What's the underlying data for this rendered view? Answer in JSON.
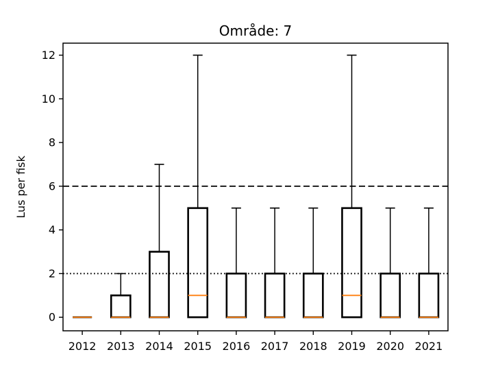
{
  "figure": {
    "background": "#ffffff"
  },
  "chart_data": {
    "type": "boxplot",
    "title": "Område: 7",
    "xlabel": "",
    "ylabel": "Lus per fisk",
    "categories": [
      "2012",
      "2013",
      "2014",
      "2015",
      "2016",
      "2017",
      "2018",
      "2019",
      "2020",
      "2021"
    ],
    "series": [
      {
        "category": "2012",
        "whisker_low": 0,
        "q1": 0,
        "median": 0,
        "q3": 0,
        "whisker_high": 0
      },
      {
        "category": "2013",
        "whisker_low": 0,
        "q1": 0,
        "median": 0,
        "q3": 1,
        "whisker_high": 2
      },
      {
        "category": "2014",
        "whisker_low": 0,
        "q1": 0,
        "median": 0,
        "q3": 3,
        "whisker_high": 7
      },
      {
        "category": "2015",
        "whisker_low": 0,
        "q1": 0,
        "median": 1,
        "q3": 5,
        "whisker_high": 12
      },
      {
        "category": "2016",
        "whisker_low": 0,
        "q1": 0,
        "median": 0,
        "q3": 2,
        "whisker_high": 5
      },
      {
        "category": "2017",
        "whisker_low": 0,
        "q1": 0,
        "median": 0,
        "q3": 2,
        "whisker_high": 5
      },
      {
        "category": "2018",
        "whisker_low": 0,
        "q1": 0,
        "median": 0,
        "q3": 2,
        "whisker_high": 5
      },
      {
        "category": "2019",
        "whisker_low": 0,
        "q1": 0,
        "median": 1,
        "q3": 5,
        "whisker_high": 12
      },
      {
        "category": "2020",
        "whisker_low": 0,
        "q1": 0,
        "median": 0,
        "q3": 2,
        "whisker_high": 5
      },
      {
        "category": "2021",
        "whisker_low": 0,
        "q1": 0,
        "median": 0,
        "q3": 2,
        "whisker_high": 5
      }
    ],
    "yticks": [
      0,
      2,
      4,
      6,
      8,
      10,
      12
    ],
    "ylim": [
      -0.62,
      12.55
    ],
    "reference_lines": [
      {
        "y": 6,
        "style": "dashed",
        "color": "#000000"
      },
      {
        "y": 2,
        "style": "dotted",
        "color": "#000000"
      }
    ],
    "grid": false,
    "legend": null,
    "colors": {
      "box_edge": "#000000",
      "median": "#ff7f0e",
      "whisker": "#000000",
      "axis": "#000000",
      "text": "#000000"
    }
  }
}
